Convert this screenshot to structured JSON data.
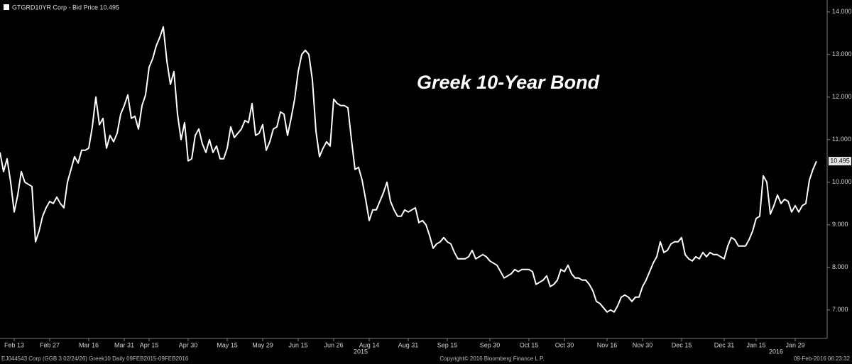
{
  "chart_data": {
    "type": "line",
    "title": "Greek 10-Year Bond",
    "footer_left": "EJ044543 Corp (GGB 3 02/24/26) Greek10  Daily 09FEB2015-09FEB2016",
    "footer_center": "Copyright© 2016 Bloomberg Finance L.P.",
    "footer_right": "09-Feb-2016 06:23:32",
    "year_labels": [
      "2015",
      "2016"
    ],
    "categories": [
      null,
      null,
      null,
      null,
      "Feb 13",
      null,
      null,
      null,
      null,
      null,
      null,
      null,
      null,
      null,
      "Feb 27",
      null,
      null,
      null,
      null,
      null,
      null,
      null,
      null,
      null,
      null,
      "Mar 16",
      null,
      null,
      null,
      null,
      null,
      null,
      null,
      null,
      null,
      "Mar 31",
      null,
      null,
      null,
      null,
      null,
      null,
      "Apr 15",
      null,
      null,
      null,
      null,
      null,
      null,
      null,
      null,
      null,
      null,
      "Apr 30",
      null,
      null,
      null,
      null,
      null,
      null,
      null,
      null,
      null,
      null,
      "May 15",
      null,
      null,
      null,
      null,
      null,
      null,
      null,
      null,
      null,
      "May 29",
      null,
      null,
      null,
      null,
      null,
      null,
      null,
      null,
      null,
      "Jun 15",
      null,
      null,
      null,
      null,
      null,
      null,
      null,
      null,
      null,
      "Jun 26",
      null,
      null,
      null,
      null,
      null,
      null,
      null,
      null,
      null,
      "Aug 14",
      null,
      null,
      null,
      null,
      null,
      null,
      null,
      null,
      null,
      null,
      "Aug 31",
      null,
      null,
      null,
      null,
      null,
      null,
      null,
      null,
      null,
      null,
      "Sep 15",
      null,
      null,
      null,
      null,
      null,
      null,
      null,
      null,
      null,
      null,
      null,
      "Sep 30",
      null,
      null,
      null,
      null,
      null,
      null,
      null,
      null,
      null,
      null,
      "Oct 15",
      null,
      null,
      null,
      null,
      null,
      null,
      null,
      null,
      null,
      "Oct 30",
      null,
      null,
      null,
      null,
      null,
      null,
      null,
      null,
      null,
      null,
      null,
      "Nov 16",
      null,
      null,
      null,
      null,
      null,
      null,
      null,
      null,
      null,
      "Nov 30",
      null,
      null,
      null,
      null,
      null,
      null,
      null,
      null,
      null,
      null,
      "Dec 15",
      null,
      null,
      null,
      null,
      null,
      null,
      null,
      null,
      null,
      null,
      null,
      "Dec 31",
      null,
      null,
      null,
      null,
      null,
      null,
      null,
      null,
      "Jan 15",
      null,
      null,
      null,
      null,
      null,
      null,
      null,
      null,
      null,
      null,
      "Jan 29",
      null,
      null,
      null,
      null,
      null,
      null
    ],
    "series": [
      {
        "name": "GTGRD10YR Corp - Bid Price 10.495",
        "color": "#ffffff",
        "values": [
          10.7,
          10.25,
          10.55,
          10.0,
          9.3,
          9.7,
          10.25,
          10.0,
          9.95,
          9.9,
          8.6,
          8.85,
          9.2,
          9.4,
          9.55,
          9.5,
          9.65,
          9.5,
          9.4,
          10.0,
          10.3,
          10.6,
          10.45,
          10.75,
          10.75,
          10.8,
          11.3,
          12.0,
          11.35,
          11.5,
          10.8,
          11.1,
          10.95,
          11.15,
          11.6,
          11.8,
          12.05,
          11.5,
          11.55,
          11.25,
          11.8,
          12.05,
          12.7,
          12.9,
          13.2,
          13.4,
          13.65,
          12.85,
          12.3,
          12.6,
          11.6,
          11.0,
          11.4,
          10.5,
          10.55,
          11.1,
          11.25,
          10.9,
          10.7,
          11.0,
          10.7,
          10.85,
          10.55,
          10.55,
          10.8,
          11.3,
          11.05,
          11.15,
          11.25,
          11.45,
          11.4,
          11.85,
          11.1,
          11.15,
          11.35,
          10.75,
          10.95,
          11.25,
          11.3,
          11.65,
          11.6,
          11.1,
          11.5,
          11.95,
          12.6,
          13.0,
          13.1,
          13.0,
          12.4,
          11.2,
          10.6,
          10.8,
          10.95,
          10.85,
          11.95,
          11.85,
          11.8,
          11.8,
          11.75,
          11.0,
          10.3,
          10.35,
          10.05,
          9.6,
          9.1,
          9.35,
          9.35,
          9.55,
          9.75,
          10.0,
          9.55,
          9.35,
          9.2,
          9.2,
          9.35,
          9.3,
          9.35,
          9.4,
          9.05,
          9.1,
          9.0,
          8.75,
          8.45,
          8.55,
          8.6,
          8.7,
          8.6,
          8.55,
          8.35,
          8.2,
          8.2,
          8.2,
          8.25,
          8.4,
          8.2,
          8.25,
          8.3,
          8.25,
          8.15,
          8.1,
          8.05,
          7.9,
          7.75,
          7.8,
          7.85,
          7.95,
          7.9,
          7.95,
          7.95,
          7.95,
          7.9,
          7.6,
          7.65,
          7.7,
          7.8,
          7.55,
          7.6,
          7.7,
          7.95,
          7.9,
          8.05,
          7.85,
          7.75,
          7.75,
          7.7,
          7.7,
          7.6,
          7.45,
          7.2,
          7.15,
          7.05,
          6.95,
          7.0,
          6.95,
          7.1,
          7.3,
          7.35,
          7.3,
          7.2,
          7.3,
          7.3,
          7.55,
          7.7,
          7.9,
          8.1,
          8.25,
          8.6,
          8.35,
          8.4,
          8.55,
          8.6,
          8.6,
          8.7,
          8.3,
          8.2,
          8.15,
          8.25,
          8.2,
          8.35,
          8.25,
          8.35,
          8.3,
          8.3,
          8.25,
          8.2,
          8.5,
          8.7,
          8.65,
          8.5,
          8.5,
          8.5,
          8.65,
          8.85,
          9.15,
          9.2,
          10.15,
          10.0,
          9.25,
          9.45,
          9.7,
          9.5,
          9.6,
          9.55,
          9.3,
          9.45,
          9.3,
          9.45,
          9.5,
          10.05,
          10.3,
          10.495
        ]
      }
    ],
    "ylim": [
      6.33,
      14.28
    ],
    "yticks": [
      {
        "value": 7,
        "label": "7.000"
      },
      {
        "value": 8,
        "label": "8.000"
      },
      {
        "value": 9,
        "label": "9.000"
      },
      {
        "value": 10,
        "label": "10.000"
      },
      {
        "value": 11,
        "label": "11.000"
      },
      {
        "value": 12,
        "label": "12.000"
      },
      {
        "value": 13,
        "label": "13.000"
      },
      {
        "value": 14,
        "label": "14.000"
      }
    ],
    "grid": false,
    "legend": "top-left"
  }
}
